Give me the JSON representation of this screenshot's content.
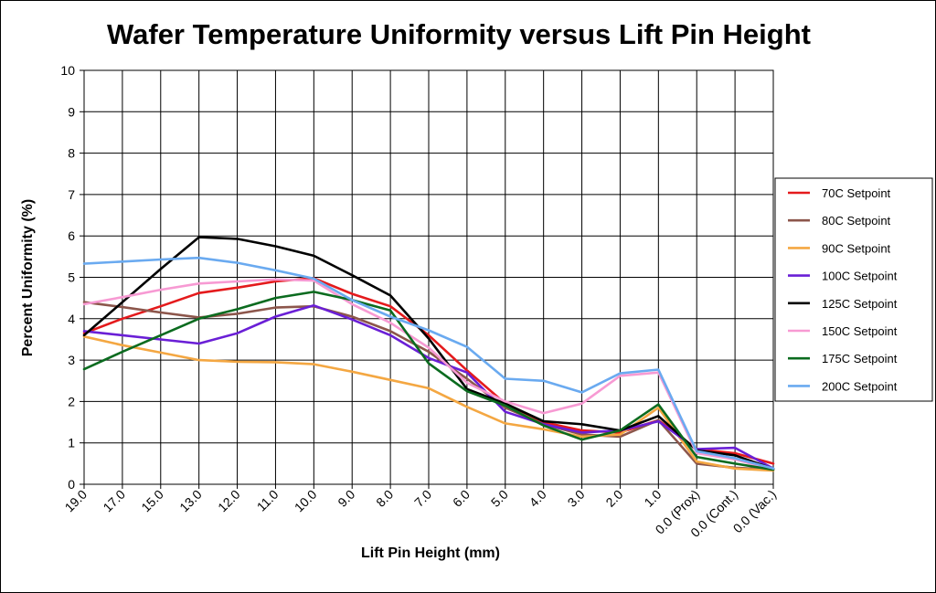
{
  "chart_data": {
    "type": "line",
    "title": "Wafer Temperature Uniformity versus Lift Pin Height",
    "xlabel": "Lift Pin Height (mm)",
    "ylabel": "Percent Uniformity (%)",
    "ylim": [
      0,
      10
    ],
    "yticks": [
      "0",
      "1",
      "2",
      "3",
      "4",
      "5",
      "6",
      "7",
      "8",
      "9",
      "10"
    ],
    "grid": true,
    "legend_position": "right",
    "categories": [
      "19.0",
      "17.0",
      "15.0",
      "13.0",
      "12.0",
      "11.0",
      "10.0",
      "9.0",
      "8.0",
      "7.0",
      "6.0",
      "5.0",
      "4.0",
      "3.0",
      "2.0",
      "1.0",
      "0.0 (Prox)",
      "0.0 (Cont.)",
      "0.0 (Vac.)"
    ],
    "series": [
      {
        "name": "70C Setpoint",
        "color": "#e41a1c",
        "values": [
          3.65,
          4.0,
          4.3,
          4.62,
          4.75,
          4.9,
          4.98,
          4.6,
          4.3,
          3.6,
          2.75,
          1.95,
          1.5,
          1.3,
          1.25,
          1.55,
          0.85,
          0.75,
          0.5
        ]
      },
      {
        "name": "80C Setpoint",
        "color": "#8c564b",
        "values": [
          4.4,
          4.28,
          4.15,
          4.03,
          4.12,
          4.27,
          4.3,
          4.05,
          3.7,
          3.2,
          2.55,
          1.85,
          1.45,
          1.2,
          1.15,
          1.55,
          0.5,
          0.4,
          0.35
        ]
      },
      {
        "name": "90C Setpoint",
        "color": "#f4a742",
        "values": [
          3.57,
          3.36,
          3.18,
          3.0,
          2.96,
          2.95,
          2.9,
          2.72,
          2.52,
          2.32,
          1.87,
          1.47,
          1.33,
          1.15,
          1.2,
          1.85,
          0.55,
          0.38,
          0.33
        ]
      },
      {
        "name": "100C Setpoint",
        "color": "#6a1fd6",
        "values": [
          3.7,
          3.6,
          3.5,
          3.4,
          3.65,
          4.05,
          4.32,
          3.98,
          3.6,
          3.05,
          2.7,
          1.75,
          1.45,
          1.25,
          1.3,
          1.52,
          0.85,
          0.88,
          0.38
        ]
      },
      {
        "name": "125C Setpoint",
        "color": "#000000",
        "values": [
          3.6,
          4.4,
          5.2,
          5.97,
          5.93,
          5.75,
          5.52,
          5.05,
          4.56,
          3.52,
          2.3,
          1.95,
          1.52,
          1.45,
          1.3,
          1.65,
          0.82,
          0.7,
          0.37
        ]
      },
      {
        "name": "150C Setpoint",
        "color": "#f79ad3",
        "values": [
          4.35,
          4.52,
          4.7,
          4.85,
          4.9,
          4.95,
          4.92,
          4.35,
          3.9,
          3.3,
          2.45,
          2.0,
          1.72,
          1.95,
          2.62,
          2.7,
          0.75,
          0.6,
          0.35
        ]
      },
      {
        "name": "175C Setpoint",
        "color": "#0b6b1f",
        "values": [
          2.78,
          3.2,
          3.6,
          4.0,
          4.23,
          4.5,
          4.65,
          4.45,
          4.2,
          2.92,
          2.25,
          1.9,
          1.42,
          1.08,
          1.3,
          1.93,
          0.66,
          0.5,
          0.35
        ]
      },
      {
        "name": "200C Setpoint",
        "color": "#6aaaf0",
        "values": [
          5.33,
          5.38,
          5.43,
          5.47,
          5.35,
          5.17,
          4.97,
          4.45,
          4.05,
          3.72,
          3.32,
          2.55,
          2.5,
          2.22,
          2.68,
          2.77,
          0.8,
          0.63,
          0.38
        ]
      }
    ]
  }
}
